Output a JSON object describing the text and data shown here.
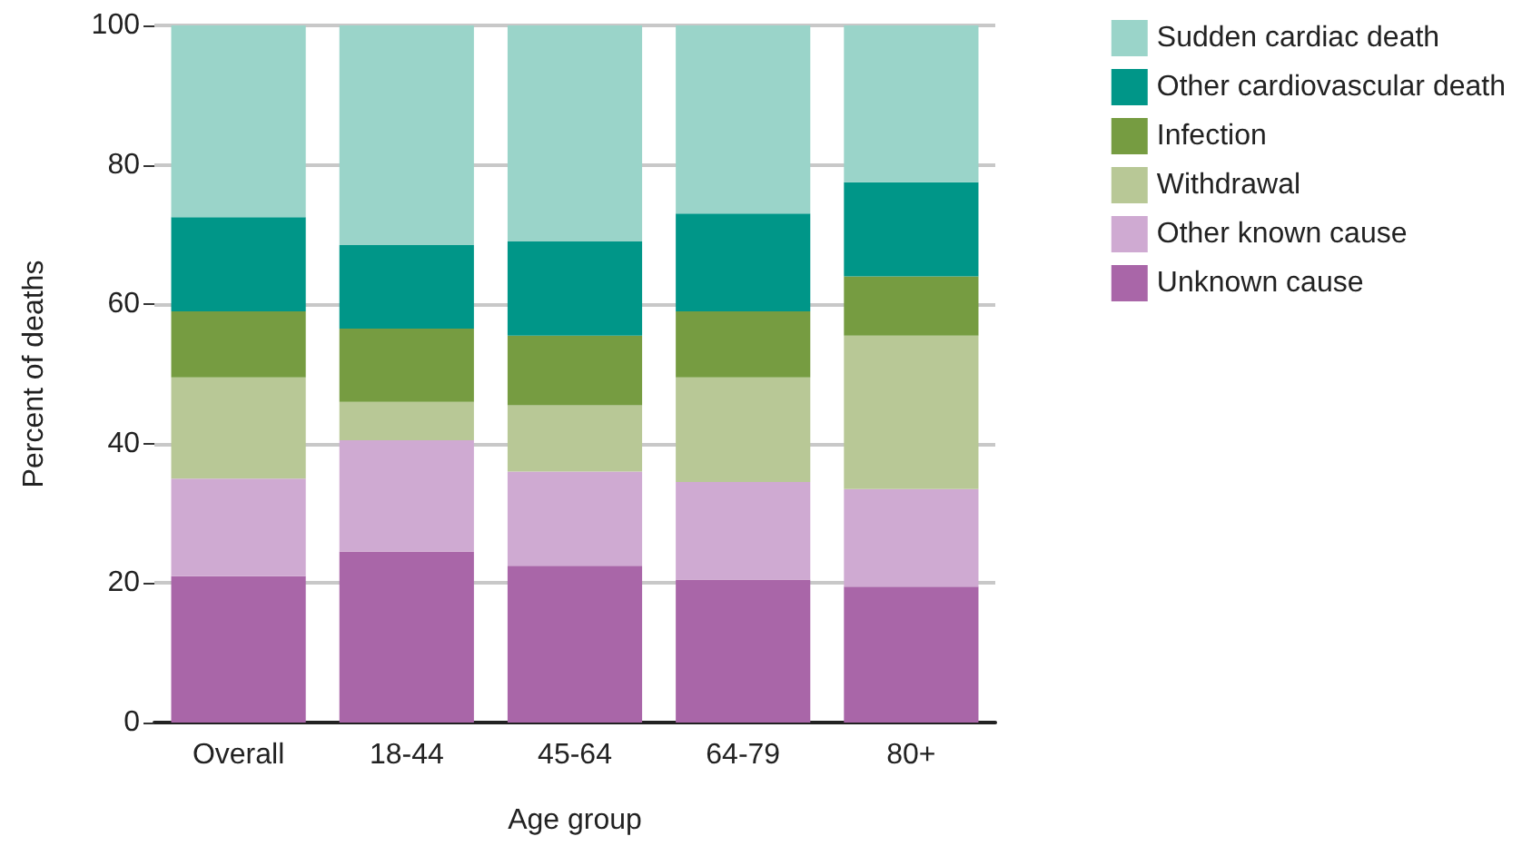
{
  "chart_data": {
    "type": "bar",
    "stacked": true,
    "xlabel": "Age group",
    "ylabel": "Percent of deaths",
    "categories": [
      "Overall",
      "18-44",
      "45-64",
      "64-79",
      "80+"
    ],
    "series": [
      {
        "name": "Unknown cause",
        "color": "#a966a8",
        "values": [
          21,
          24.5,
          22.5,
          20.5,
          19.5
        ]
      },
      {
        "name": "Other known cause",
        "color": "#cfaad2",
        "values": [
          14,
          16,
          13.5,
          14,
          14
        ]
      },
      {
        "name": "Withdrawal",
        "color": "#b8c896",
        "values": [
          14.5,
          5.5,
          9.5,
          15,
          22
        ]
      },
      {
        "name": "Infection",
        "color": "#769c41",
        "values": [
          9.5,
          10.5,
          10,
          9.5,
          8.5
        ]
      },
      {
        "name": "Other cardiovascular death",
        "color": "#009688",
        "values": [
          13.5,
          12,
          13.5,
          14,
          13.5
        ]
      },
      {
        "name": "Sudden cardiac death",
        "color": "#9ad4c9",
        "values": [
          27.5,
          31.5,
          31,
          27,
          22.5
        ]
      }
    ],
    "ylim": [
      0,
      100
    ],
    "yticks": [
      0,
      20,
      40,
      60,
      80,
      100
    ],
    "grid": "y",
    "legend": "top right"
  }
}
